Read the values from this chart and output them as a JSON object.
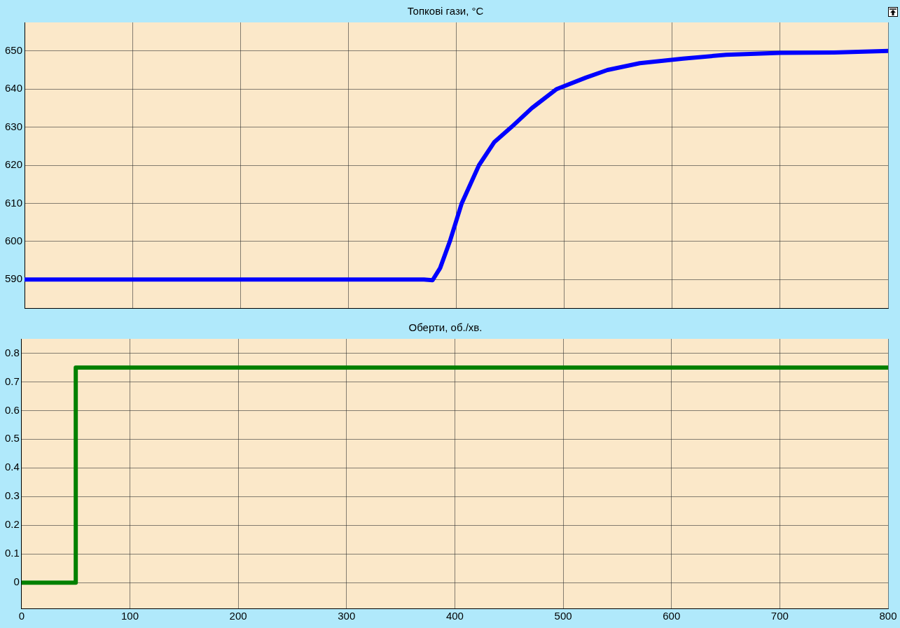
{
  "chart_data": [
    {
      "type": "line",
      "title": "Топкові гази, °C",
      "x": [
        0,
        100,
        200,
        300,
        370,
        378,
        385,
        394,
        405,
        421,
        435,
        451,
        470,
        493,
        520,
        540,
        570,
        610,
        650,
        700,
        750,
        800
      ],
      "series": [
        {
          "color": "#0000ff",
          "values": [
            590,
            590,
            590,
            590,
            590,
            589.8,
            593,
            600,
            610,
            620,
            626,
            630,
            635,
            640,
            643,
            645,
            646.8,
            648,
            649,
            649.5,
            649.6,
            650
          ]
        }
      ],
      "xlim": [
        0,
        800
      ],
      "xticks": [
        0,
        100,
        200,
        300,
        400,
        500,
        600,
        700,
        800
      ],
      "ylim": [
        582.5,
        657.5
      ],
      "yticks": [
        590,
        600,
        610,
        620,
        630,
        640,
        650
      ],
      "grid": true,
      "tick_labels": "y",
      "marker": "none"
    },
    {
      "type": "step",
      "title": "Оберти, об./хв.",
      "x": [
        0,
        50,
        800
      ],
      "series": [
        {
          "color": "#008000",
          "values": [
            0,
            0.75,
            0.75
          ]
        }
      ],
      "xlim": [
        0,
        800
      ],
      "xticks": [
        0,
        100,
        200,
        300,
        400,
        500,
        600,
        700,
        800
      ],
      "ylim": [
        -0.09,
        0.85
      ],
      "yticks": [
        0,
        0.1,
        0.2,
        0.3,
        0.4,
        0.5,
        0.6,
        0.7,
        0.8
      ],
      "grid": true,
      "marker": "none"
    }
  ]
}
